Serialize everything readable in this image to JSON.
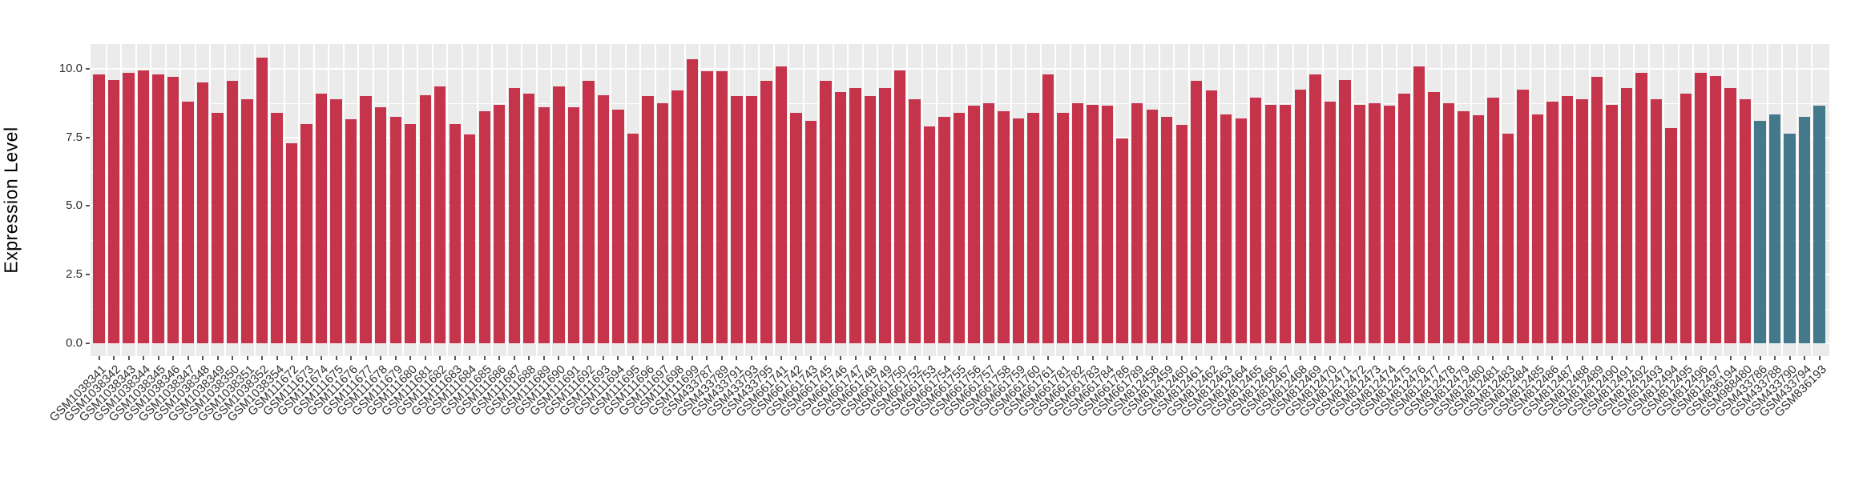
{
  "chart_data": {
    "type": "bar",
    "title": "",
    "xlabel": "",
    "ylabel": "Expression Level",
    "ylim": [
      0,
      10.9
    ],
    "ytick_values": [
      0,
      2.5,
      5,
      7.5,
      10
    ],
    "ytick_labels": [
      "0.0",
      "2.5",
      "5.0",
      "7.5",
      "10.0"
    ],
    "minor_gridline_values": [
      1.25,
      3.75,
      6.25,
      8.75
    ],
    "grid": true,
    "legend": false,
    "panel_background": "#EBEBEB",
    "gridline_color": "#FFFFFF",
    "palette": {
      "default": "#C5344B",
      "highlight": "#44798C"
    },
    "highlight_categories": [
      "GSM433786",
      "GSM433788",
      "GSM433790",
      "GSM433794",
      "GSM836193"
    ],
    "categories": [
      "GSM1038341",
      "GSM1038342",
      "GSM1038343",
      "GSM1038344",
      "GSM1038345",
      "GSM1038346",
      "GSM1038347",
      "GSM1038348",
      "GSM1038349",
      "GSM1038350",
      "GSM1038351",
      "GSM1038352",
      "GSM1038354",
      "GSM111672",
      "GSM111673",
      "GSM111674",
      "GSM111675",
      "GSM111676",
      "GSM111677",
      "GSM111678",
      "GSM111679",
      "GSM111680",
      "GSM111681",
      "GSM111682",
      "GSM111683",
      "GSM111684",
      "GSM111685",
      "GSM111686",
      "GSM111687",
      "GSM111688",
      "GSM111689",
      "GSM111690",
      "GSM111691",
      "GSM111692",
      "GSM111693",
      "GSM111694",
      "GSM111695",
      "GSM111696",
      "GSM111697",
      "GSM111698",
      "GSM111699",
      "GSM433787",
      "GSM433789",
      "GSM433791",
      "GSM433793",
      "GSM433795",
      "GSM661741",
      "GSM661742",
      "GSM661743",
      "GSM661745",
      "GSM661746",
      "GSM661747",
      "GSM661748",
      "GSM661749",
      "GSM661750",
      "GSM661752",
      "GSM661753",
      "GSM661754",
      "GSM661755",
      "GSM661756",
      "GSM661757",
      "GSM661758",
      "GSM661759",
      "GSM661760",
      "GSM661761",
      "GSM661781",
      "GSM661782",
      "GSM661783",
      "GSM661784",
      "GSM661786",
      "GSM661789",
      "GSM812458",
      "GSM812459",
      "GSM812460",
      "GSM812461",
      "GSM812462",
      "GSM812463",
      "GSM812464",
      "GSM812465",
      "GSM812466",
      "GSM812467",
      "GSM812468",
      "GSM812469",
      "GSM812470",
      "GSM812471",
      "GSM812472",
      "GSM812473",
      "GSM812474",
      "GSM812475",
      "GSM812476",
      "GSM812477",
      "GSM812478",
      "GSM812479",
      "GSM812480",
      "GSM812481",
      "GSM812483",
      "GSM812484",
      "GSM812485",
      "GSM812486",
      "GSM812487",
      "GSM812488",
      "GSM812489",
      "GSM812490",
      "GSM812491",
      "GSM812492",
      "GSM812493",
      "GSM812494",
      "GSM812495",
      "GSM812496",
      "GSM812497",
      "GSM836194",
      "GSM988480",
      "GSM433786",
      "GSM433788",
      "GSM433790",
      "GSM433794",
      "GSM836193"
    ],
    "values": [
      9.8,
      9.6,
      9.85,
      9.95,
      9.8,
      9.7,
      8.8,
      9.5,
      8.4,
      9.55,
      8.9,
      10.4,
      8.4,
      7.3,
      8.0,
      9.1,
      8.9,
      8.15,
      9.0,
      8.6,
      8.25,
      8.0,
      9.05,
      9.35,
      8.0,
      7.6,
      8.45,
      8.7,
      9.3,
      9.1,
      8.6,
      9.35,
      8.6,
      9.55,
      9.05,
      8.5,
      7.65,
      9.0,
      8.75,
      9.2,
      10.35,
      9.9,
      9.9,
      9.0,
      9.0,
      9.55,
      10.1,
      8.4,
      8.1,
      9.55,
      9.15,
      9.3,
      9.0,
      9.3,
      9.95,
      8.9,
      7.9,
      8.25,
      8.4,
      8.65,
      8.75,
      8.45,
      8.2,
      8.4,
      9.8,
      8.4,
      8.75,
      8.7,
      8.65,
      7.45,
      8.75,
      8.5,
      8.25,
      7.95,
      9.55,
      9.2,
      8.35,
      8.2,
      8.95,
      8.7,
      8.7,
      9.25,
      9.8,
      8.8,
      9.6,
      8.7,
      8.75,
      8.65,
      9.1,
      10.1,
      9.15,
      8.75,
      8.45,
      8.3,
      8.95,
      7.65,
      9.25,
      8.35,
      8.8,
      9.0,
      8.9,
      9.7,
      8.7,
      9.3,
      9.85,
      8.9,
      7.85,
      9.1,
      9.85,
      9.75,
      9.3,
      8.9,
      8.1,
      8.35,
      7.65,
      8.25,
      8.65
    ]
  }
}
